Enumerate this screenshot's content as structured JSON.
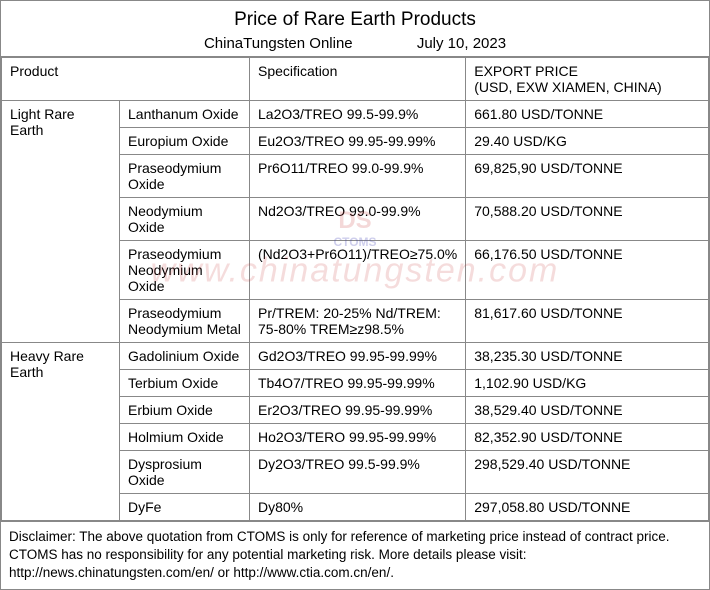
{
  "header": {
    "title": "Price of Rare Earth Products",
    "source": "ChinaTungsten Online",
    "date": "July 10, 2023"
  },
  "columns": {
    "product": "Product",
    "specification": "Specification",
    "price_label1": "EXPORT PRICE",
    "price_label2": "(USD, EXW XIAMEN, CHINA)"
  },
  "categories": [
    {
      "name": "Light Rare Earth",
      "rows": [
        {
          "product": "Lanthanum Oxide",
          "spec": "La2O3/TREO 99.5-99.9%",
          "price": "661.80 USD/TONNE"
        },
        {
          "product": "Europium Oxide",
          "spec": "Eu2O3/TREO 99.95-99.99%",
          "price": "29.40 USD/KG"
        },
        {
          "product": "Praseodymium Oxide",
          "spec": "Pr6O11/TREO 99.0-99.9%",
          "price": "69,825,90 USD/TONNE"
        },
        {
          "product": "Neodymium Oxide",
          "spec": "Nd2O3/TREO 99.0-99.9%",
          "price": "70,588.20 USD/TONNE"
        },
        {
          "product": "Praseodymium Neodymium Oxide",
          "spec": "(Nd2O3+Pr6O11)/TREO≥75.0%",
          "price": "66,176.50 USD/TONNE"
        },
        {
          "product": "Praseodymium Neodymium Metal",
          "spec": "Pr/TREM: 20-25%   Nd/TREM: 75-80% TREM≥z98.5%",
          "price": "81,617.60 USD/TONNE"
        }
      ]
    },
    {
      "name": "Heavy Rare Earth",
      "rows": [
        {
          "product": "Gadolinium Oxide",
          "spec": "Gd2O3/TREO 99.95-99.99%",
          "price": "38,235.30 USD/TONNE"
        },
        {
          "product": "Terbium Oxide",
          "spec": "Tb4O7/TREO 99.95-99.99%",
          "price": "1,102.90 USD/KG"
        },
        {
          "product": "Erbium Oxide",
          "spec": "Er2O3/TREO 99.95-99.99%",
          "price": "38,529.40 USD/TONNE"
        },
        {
          "product": "Holmium Oxide",
          "spec": "Ho2O3/TERO 99.95-99.99%",
          "price": "82,352.90 USD/TONNE"
        },
        {
          "product": "Dysprosium Oxide",
          "spec": "Dy2O3/TREO 99.5-99.9%",
          "price": "298,529.40 USD/TONNE"
        },
        {
          "product": "DyFe",
          "spec": "Dy80%",
          "price": "297,058.80 USD/TONNE"
        }
      ]
    }
  ],
  "disclaimer": "Disclaimer: The above quotation from CTOMS is only for reference of marketing price instead of contract price. CTOMS has no responsibility for any potential marketing risk. More details please visit: http://news.chinatungsten.com/en/ or http://www.ctia.com.cn/en/.",
  "watermark": {
    "text": "www.chinatungsten.com",
    "logo_top": "DS",
    "logo_bottom": "CTOMS"
  },
  "styling": {
    "border_color": "#888888",
    "background_color": "#ffffff",
    "text_color": "#000000",
    "title_fontsize": 19,
    "subtitle_fontsize": 15,
    "table_fontsize": 14,
    "disclaimer_fontsize": 13.5,
    "watermark_color": "rgba(200,60,60,0.18)"
  }
}
